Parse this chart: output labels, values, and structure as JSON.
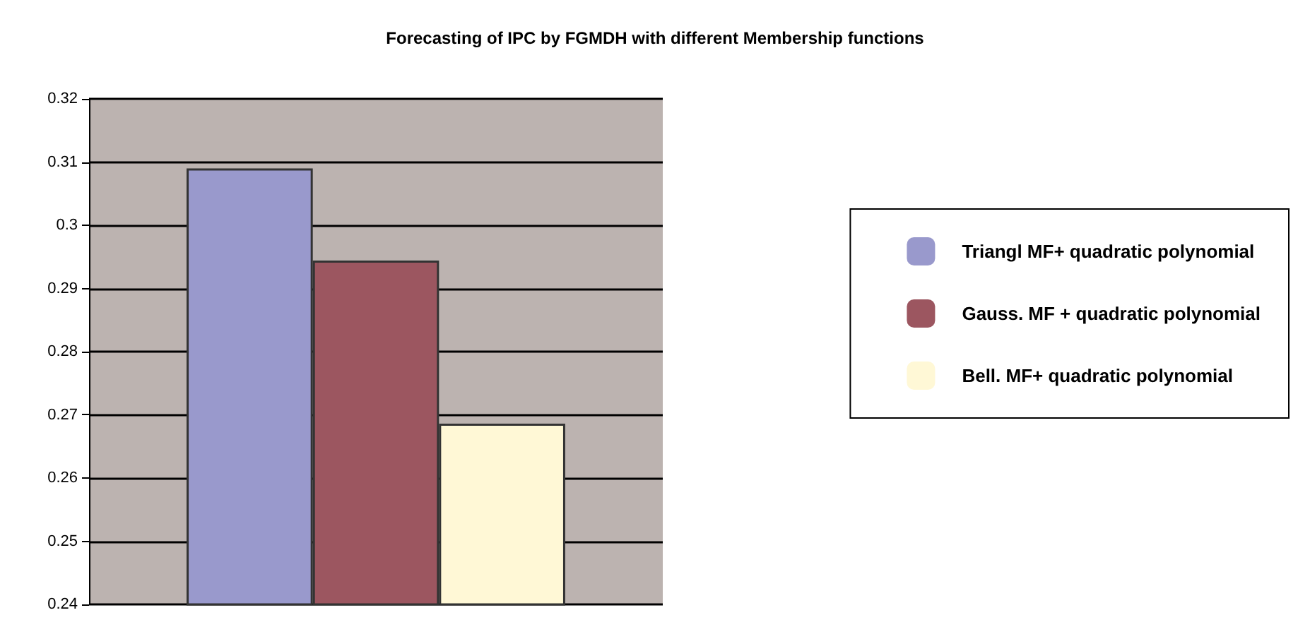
{
  "chart_data": {
    "type": "bar",
    "title": "Forecasting of IPC by FGMDH with different Membership functions",
    "categories": [
      null
    ],
    "series": [
      {
        "name": "Triangl MF+ quadratic polynomial",
        "color": "#9999cc",
        "values": [
          0.309
        ]
      },
      {
        "name": "Gauss. MF + quadratic polynomial",
        "color": "#9c5660",
        "values": [
          0.2944
        ]
      },
      {
        "name": "Bell. MF+ quadratic polynomial",
        "color": "#fff8d6",
        "values": [
          0.2686
        ]
      }
    ],
    "ylim": [
      0.24,
      0.32
    ],
    "yticks": [
      0.24,
      0.25,
      0.26,
      0.27,
      0.28,
      0.29,
      0.3,
      0.31,
      0.32
    ],
    "grid": "y",
    "legend": "right"
  }
}
